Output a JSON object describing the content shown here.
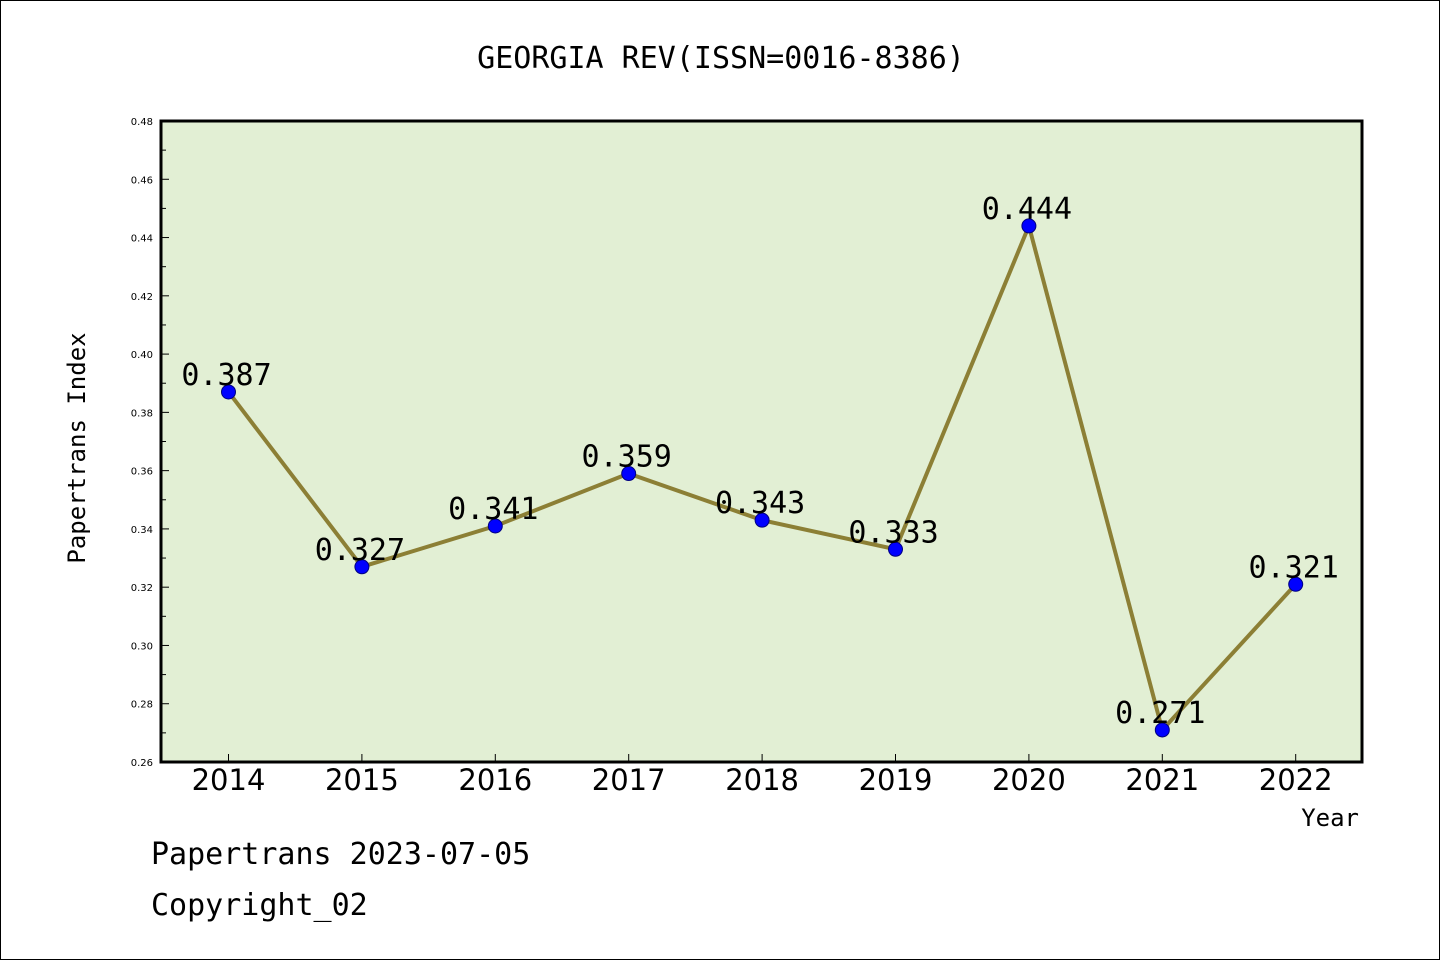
{
  "chart_data": {
    "type": "line",
    "title": "GEORGIA REV(ISSN=0016-8386)",
    "xlabel": "Year",
    "ylabel": "Papertrans Index",
    "categories": [
      "2014",
      "2015",
      "2016",
      "2017",
      "2018",
      "2019",
      "2020",
      "2021",
      "2022"
    ],
    "values": [
      0.387,
      0.327,
      0.341,
      0.359,
      0.343,
      0.333,
      0.444,
      0.271,
      0.321
    ],
    "data_labels": [
      "0.387",
      "0.327",
      "0.341",
      "0.359",
      "0.343",
      "0.333",
      "0.444",
      "0.271",
      "0.321"
    ],
    "ylim": [
      0.26,
      0.48
    ],
    "yticks": [
      "0.26",
      "0.28",
      "0.30",
      "0.32",
      "0.34",
      "0.36",
      "0.38",
      "0.40",
      "0.42",
      "0.44",
      "0.46",
      "0.48"
    ],
    "grid": false,
    "legend": "none",
    "colors": {
      "plot_background": "#e2efd4",
      "line": "#8c7f35",
      "marker": "#0000ff",
      "marker_edge": "#000080"
    }
  },
  "footer": {
    "line1": "Papertrans 2023-07-05",
    "line2": "Copyright_02"
  }
}
